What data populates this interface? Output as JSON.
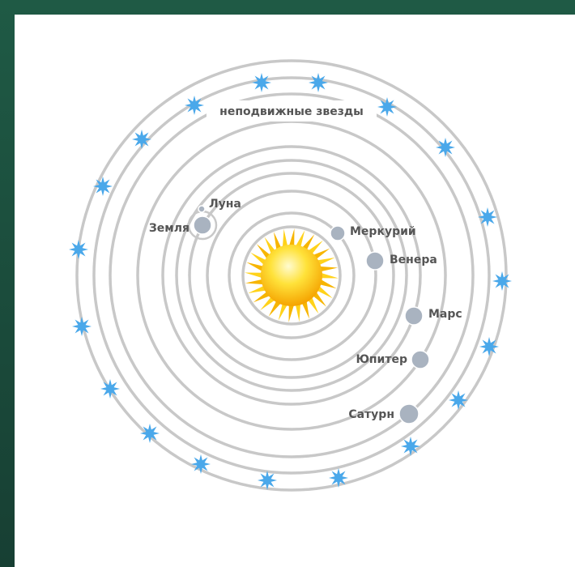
{
  "title": "неподвижные звезды",
  "nodes": [
    {
      "label": "Луна"
    },
    {
      "label": "Земля"
    },
    {
      "label": "Меркурий"
    },
    {
      "label": "Венера"
    },
    {
      "label": "Марс"
    },
    {
      "label": "Юпитер"
    },
    {
      "label": "Сатурн"
    }
  ]
}
